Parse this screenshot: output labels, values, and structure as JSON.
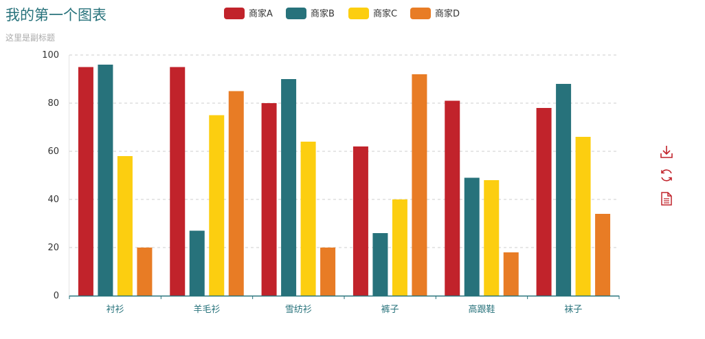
{
  "title": "我的第一个图表",
  "subtitle": "这里是副标题",
  "toolbox": {
    "items": [
      "download-icon",
      "refresh-icon",
      "data-view-icon"
    ],
    "color": "#c1232b"
  },
  "chart_data": {
    "type": "bar",
    "categories": [
      "衬衫",
      "羊毛衫",
      "雪纺衫",
      "裤子",
      "高跟鞋",
      "袜子"
    ],
    "series": [
      {
        "name": "商家A",
        "color": "#c1232b",
        "values": [
          95,
          95,
          80,
          62,
          81,
          78
        ]
      },
      {
        "name": "商家B",
        "color": "#27727b",
        "values": [
          96,
          27,
          90,
          26,
          49,
          88
        ]
      },
      {
        "name": "商家C",
        "color": "#fcce10",
        "values": [
          58,
          75,
          64,
          40,
          48,
          66
        ]
      },
      {
        "name": "商家D",
        "color": "#e87c25",
        "values": [
          20,
          85,
          20,
          92,
          18,
          34
        ]
      }
    ],
    "yticks": [
      0,
      20,
      40,
      60,
      80,
      100
    ],
    "ylim": [
      0,
      100
    ],
    "grid": true,
    "legend_position": "top-center"
  }
}
